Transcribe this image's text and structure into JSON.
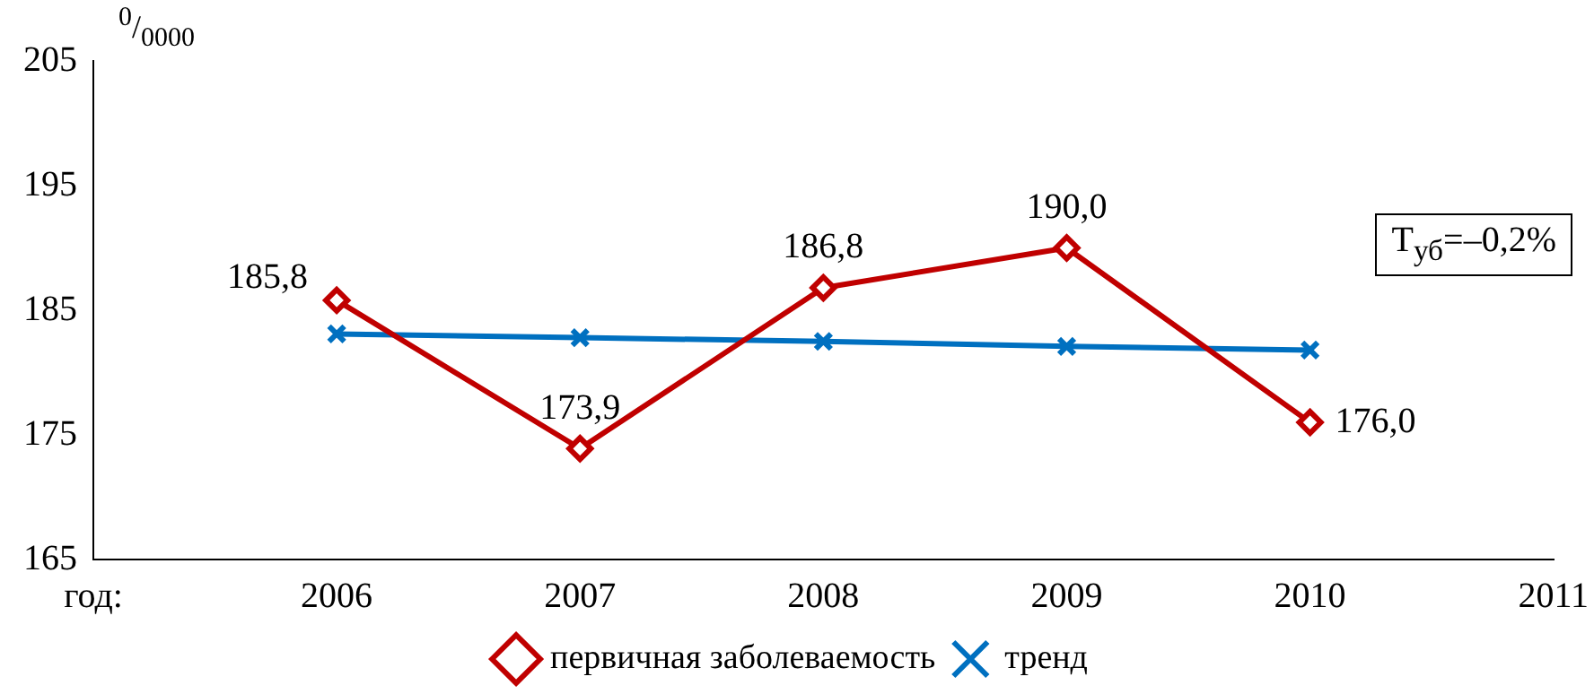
{
  "chart_data": {
    "type": "line",
    "ylabel": "$^{0}$/$_{0000}$",
    "xlabel": "год:",
    "categories": [
      null,
      "2006",
      "2007",
      "2008",
      "2009",
      "2010",
      "2011"
    ],
    "ylim": [
      165,
      205
    ],
    "yticks": [
      165,
      175,
      185,
      195,
      205
    ],
    "grid": false,
    "legend": "bottom",
    "annotations": [
      "Т$_{уб}$=–0,2%"
    ],
    "series": [
      {
        "name": "первичная заболеваемость",
        "color": "#c00000",
        "marker": "diamond",
        "values": [
          null,
          185.8,
          173.9,
          186.8,
          190.0,
          176.0,
          null
        ],
        "value_labels": [
          null,
          "185,8",
          "173,9",
          "186,8",
          "190,0",
          "176,0",
          null
        ]
      },
      {
        "name": "тренд",
        "color": "#0070c0",
        "marker": "cross",
        "values": [
          null,
          183.1,
          182.8,
          182.5,
          182.1,
          181.8,
          null
        ]
      }
    ]
  }
}
